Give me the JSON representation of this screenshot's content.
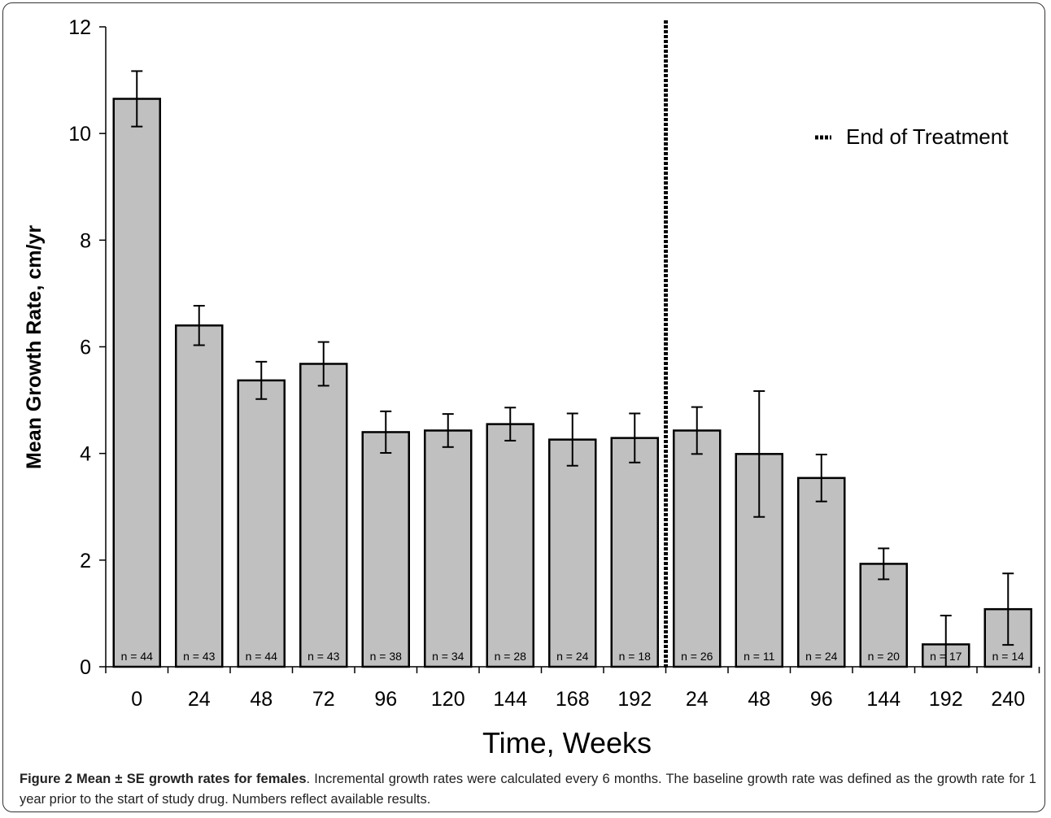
{
  "chart_data": {
    "type": "bar",
    "ylabel": "Mean Growth Rate, cm/yr",
    "xlabel": "Time, Weeks",
    "ylim": [
      0,
      12
    ],
    "yticks": [
      "0",
      "2",
      "4",
      "6",
      "8",
      "10",
      "12"
    ],
    "grid": false,
    "legend": {
      "placement": "top-right",
      "label": "End of Treatment"
    },
    "categories": [
      "0",
      "24",
      "48",
      "72",
      "96",
      "120",
      "144",
      "168",
      "192",
      "24",
      "48",
      "96",
      "144",
      "192",
      "240"
    ],
    "values": [
      10.65,
      6.4,
      5.37,
      5.68,
      4.4,
      4.43,
      4.55,
      4.26,
      4.29,
      4.43,
      3.99,
      3.54,
      1.93,
      0.42,
      1.08
    ],
    "error": [
      0.52,
      0.37,
      0.35,
      0.41,
      0.39,
      0.31,
      0.31,
      0.49,
      0.46,
      0.44,
      1.18,
      0.44,
      0.29,
      0.54,
      0.67
    ],
    "n_labels": [
      "n = 44",
      "n = 43",
      "n = 44",
      "n = 43",
      "n = 38",
      "n = 34",
      "n = 28",
      "n = 24",
      "n = 18",
      "n = 26",
      "n = 11",
      "n = 24",
      "n = 20",
      "n = 17",
      "n = 14"
    ],
    "end_of_treatment_after_index": 8,
    "colors": {
      "bar": "#c0c0c0",
      "outline": "#000000"
    }
  },
  "caption": {
    "lead": "Figure 2 Mean ± SE growth rates for females",
    "text": ". Incremental growth rates were calculated every 6 months. The baseline growth rate was defined as the growth rate for 1 year prior to the start of study drug. Numbers reflect available results."
  }
}
